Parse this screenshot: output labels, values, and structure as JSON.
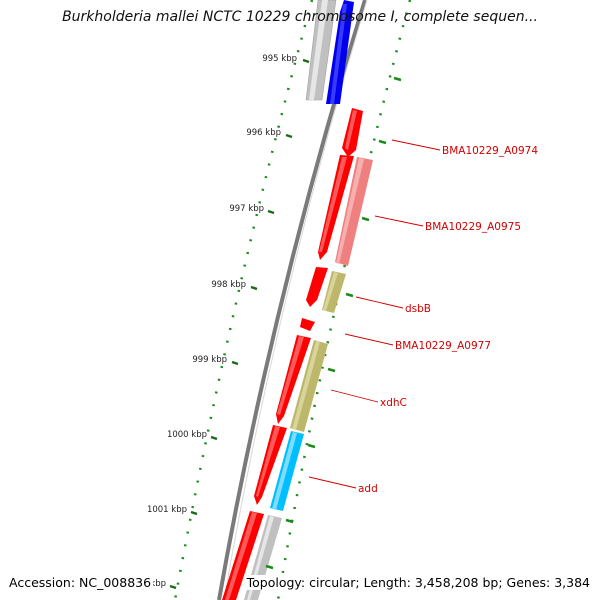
{
  "title": "Burkholderia mallei NCTC 10229 chromosome I, complete sequen...",
  "footer": {
    "accession": "Accession: NC_008836",
    "topology": "Topology: circular; Length: 3,458,208 bp; Genes: 3,384"
  },
  "ticks": [
    "995 kbp",
    "996 kbp",
    "997 kbp",
    "998 kbp",
    "999 kbp",
    "1000 kbp",
    "1001 kbp",
    "kbp"
  ],
  "gene_labels": [
    "BMA10229_A0974",
    "BMA10229_A0975",
    "dsbB",
    "BMA10229_A0977",
    "xdhC",
    "add"
  ],
  "colors": {
    "cds_forward": "#ff0000",
    "cds_reverse": "#ff0000",
    "blue_feature": "#0000ee",
    "gray_feature": "#c0c0c0",
    "pink_feature": "#f08080",
    "olive_feature": "#bdb76b",
    "cyan_feature": "#00bfff",
    "label": "#d20000",
    "gc_ticks": "#1a8a1a",
    "backbone": "#808080"
  }
}
